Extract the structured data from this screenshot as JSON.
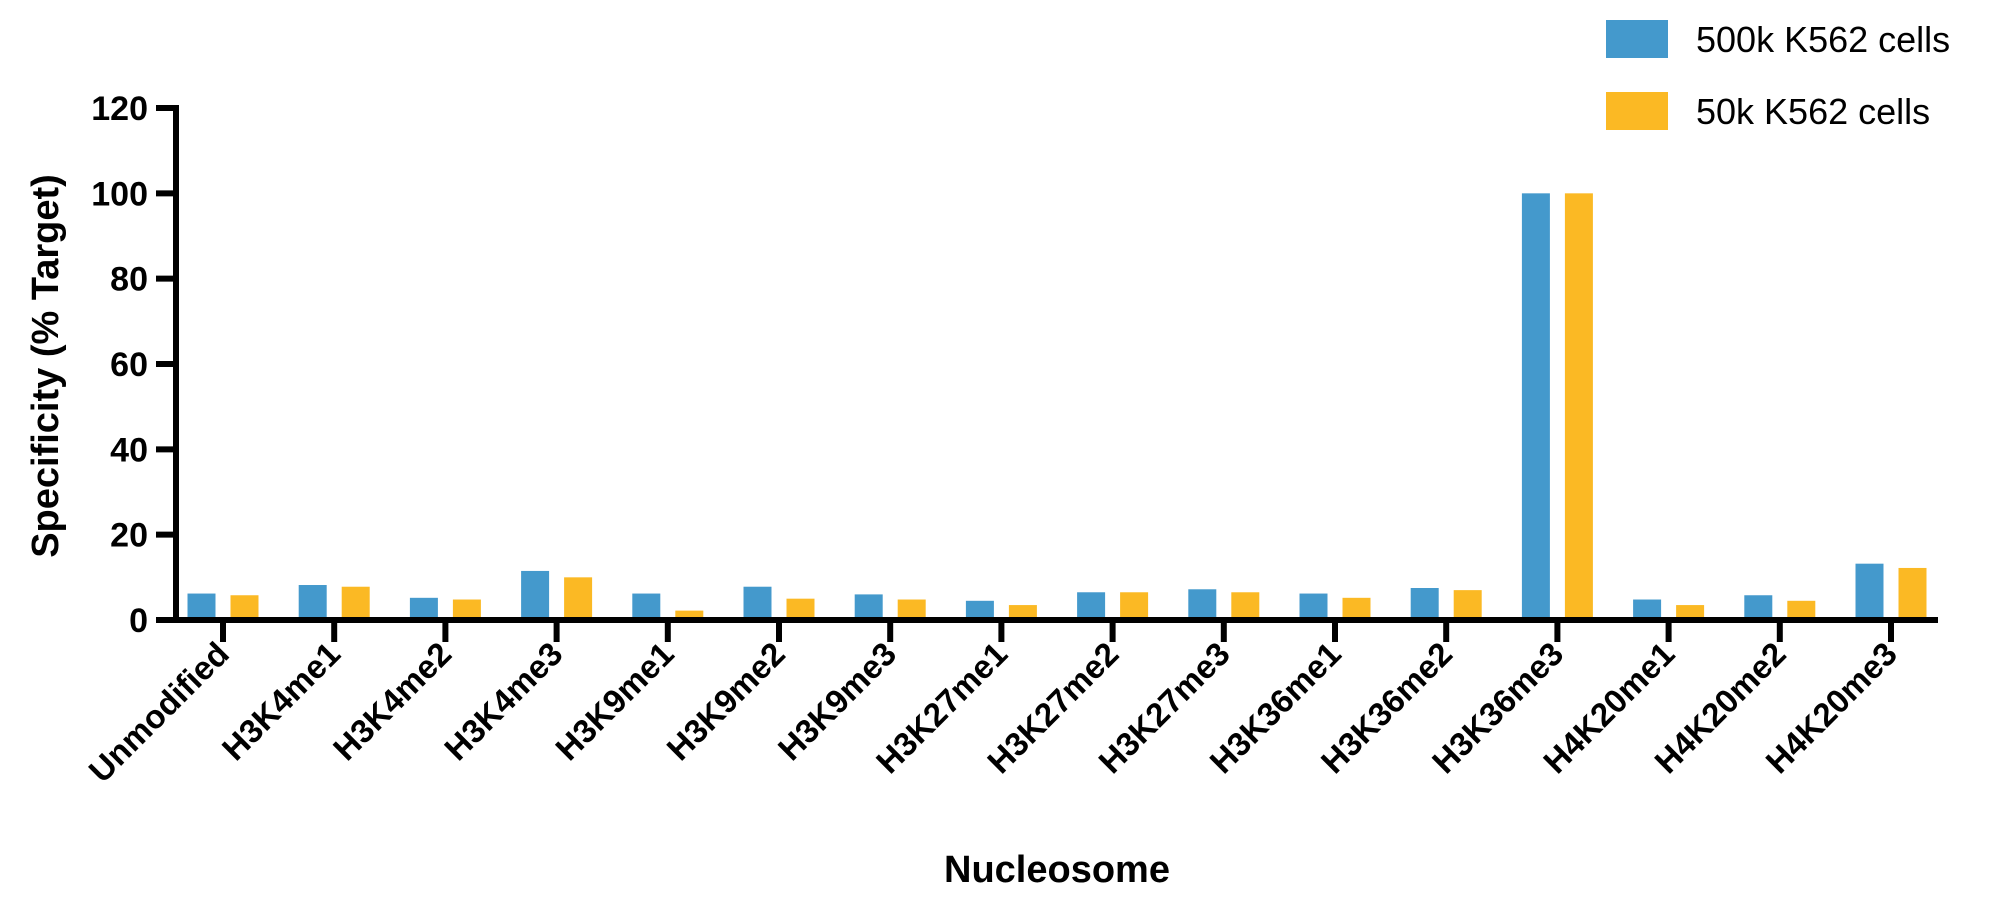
{
  "chart_data": {
    "type": "bar",
    "title": "",
    "xlabel": "Nucleosome",
    "ylabel": "Specificity (% Target)",
    "ylim": [
      0,
      120
    ],
    "yticks": [
      "0",
      "20",
      "40",
      "60",
      "80",
      "100",
      "120"
    ],
    "categories": [
      "Unmodified",
      "H3K4me1",
      "H3K4me2",
      "H3K4me3",
      "H3K9me1",
      "H3K9me2",
      "H3K9me3",
      "H3K27me1",
      "H3K27me2",
      "H3K27me3",
      "H3K36me1",
      "H3K36me2",
      "H3K36me3",
      "H4K20me1",
      "H4K20me2",
      "H4K20me3"
    ],
    "series": [
      {
        "name": "500k K562 cells",
        "color": "#4499cc",
        "values": [
          6.2,
          8.2,
          5.2,
          11.5,
          6.2,
          7.8,
          6.0,
          4.5,
          6.5,
          7.2,
          6.2,
          7.5,
          100,
          4.8,
          5.8,
          13.2
        ]
      },
      {
        "name": "50k K562 cells",
        "color": "#fbb924",
        "values": [
          5.8,
          7.8,
          4.8,
          10.0,
          2.2,
          5.0,
          4.8,
          3.5,
          6.5,
          6.5,
          5.2,
          7.0,
          100,
          3.5,
          4.5,
          12.2
        ]
      }
    ],
    "legend_position": "top-right",
    "grid": false
  }
}
